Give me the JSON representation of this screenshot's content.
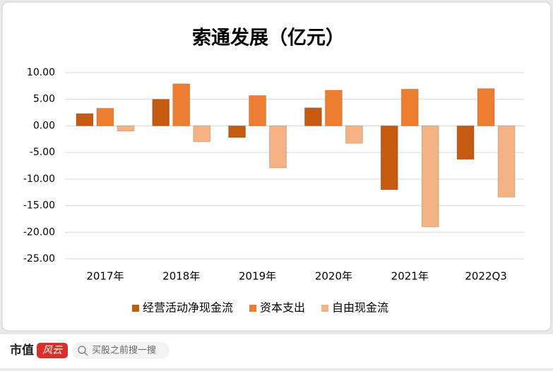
{
  "chart_data": {
    "type": "bar",
    "title": "索通发展（亿元）",
    "categories": [
      "2017年",
      "2018年",
      "2019年",
      "2020年",
      "2021年",
      "2022Q3"
    ],
    "series": [
      {
        "name": "经营活动净现金流",
        "color": "#c55a11",
        "values": [
          2.3,
          5.0,
          -2.2,
          3.4,
          -12.0,
          -6.3
        ]
      },
      {
        "name": "资本支出",
        "color": "#ed7d31",
        "values": [
          3.3,
          7.9,
          5.7,
          6.7,
          6.9,
          7.0
        ]
      },
      {
        "name": "自由现金流",
        "color": "#f4b183",
        "values": [
          -1.0,
          -3.0,
          -7.9,
          -3.3,
          -19.0,
          -13.4
        ]
      }
    ],
    "ylim": [
      -25,
      10
    ],
    "yticks": [
      {
        "value": -25,
        "label": "-25.00"
      },
      {
        "value": -20,
        "label": "-20.00"
      },
      {
        "value": -15,
        "label": "-15.00"
      },
      {
        "value": -10,
        "label": "-10.00"
      },
      {
        "value": -5,
        "label": "-5.00"
      },
      {
        "value": 0,
        "label": "0.00"
      },
      {
        "value": 5,
        "label": "5.00"
      },
      {
        "value": 10,
        "label": "10.00"
      }
    ],
    "grid": true,
    "legend": "bottom"
  },
  "footer": {
    "logo_text": "市值",
    "logo_badge": "风云",
    "search_placeholder": "买股之前搜一搜"
  }
}
